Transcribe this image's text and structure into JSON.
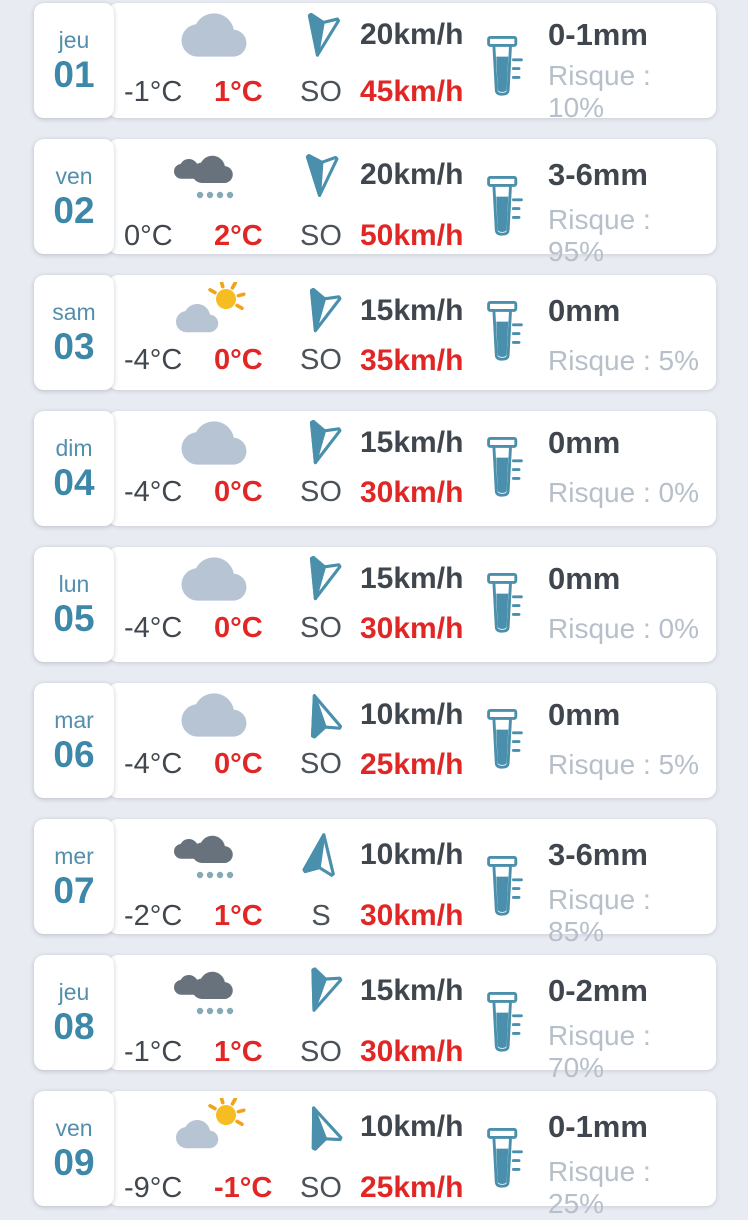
{
  "app": {
    "type": "weather-daily-forecast-list"
  },
  "colors": {
    "page_bg": "#e8ebf1",
    "card_bg": "#ffffff",
    "teal": "#4a90ad",
    "day_abbr": "#538fac",
    "day_num": "#3d87a9",
    "text_dark": "#3f464e",
    "text_red": "#e12626",
    "text_muted": "#b7c0ca",
    "cloud_light": "#b6c4d4",
    "cloud_dark": "#67727d",
    "rain_dot": "#86a9b6",
    "sun": "#f5bd22",
    "sun_ray": "#f0a31c"
  },
  "forecast": {
    "rows": [
      {
        "day_abbr": "jeu",
        "day_num": "01",
        "weather_icon": "cloud",
        "temp_min": "-1°C",
        "temp_max": "1°C",
        "wind_dir": "SO",
        "wind_speed": "20km/h",
        "wind_gust": "45km/h",
        "arrow_rotation": 190,
        "arrow_solid_wing": "right",
        "precip": "0-1mm",
        "risk": "Risque : 10%"
      },
      {
        "day_abbr": "ven",
        "day_num": "02",
        "weather_icon": "rain",
        "temp_min": "0°C",
        "temp_max": "2°C",
        "wind_dir": "SO",
        "wind_speed": "20km/h",
        "wind_gust": "50km/h",
        "arrow_rotation": 184,
        "arrow_solid_wing": "right",
        "precip": "3-6mm",
        "risk": "Risque : 95%"
      },
      {
        "day_abbr": "sam",
        "day_num": "03",
        "weather_icon": "partly-sunny",
        "temp_min": "-4°C",
        "temp_max": "0°C",
        "wind_dir": "SO",
        "wind_speed": "15km/h",
        "wind_gust": "35km/h",
        "arrow_rotation": 196,
        "arrow_solid_wing": "right",
        "precip": "0mm",
        "risk": "Risque : 5%"
      },
      {
        "day_abbr": "dim",
        "day_num": "04",
        "weather_icon": "cloud",
        "temp_min": "-4°C",
        "temp_max": "0°C",
        "wind_dir": "SO",
        "wind_speed": "15km/h",
        "wind_gust": "30km/h",
        "arrow_rotation": 196,
        "arrow_solid_wing": "right",
        "precip": "0mm",
        "risk": "Risque : 0%"
      },
      {
        "day_abbr": "lun",
        "day_num": "05",
        "weather_icon": "cloud",
        "temp_min": "-4°C",
        "temp_max": "0°C",
        "wind_dir": "SO",
        "wind_speed": "15km/h",
        "wind_gust": "30km/h",
        "arrow_rotation": 196,
        "arrow_solid_wing": "right",
        "precip": "0mm",
        "risk": "Risque : 0%"
      },
      {
        "day_abbr": "mar",
        "day_num": "06",
        "weather_icon": "cloud",
        "temp_min": "-4°C",
        "temp_max": "0°C",
        "wind_dir": "SO",
        "wind_speed": "10km/h",
        "wind_gust": "25km/h",
        "arrow_rotation": -19,
        "arrow_solid_wing": "left",
        "precip": "0mm",
        "risk": "Risque : 5%"
      },
      {
        "day_abbr": "mer",
        "day_num": "07",
        "weather_icon": "rain",
        "temp_min": "-2°C",
        "temp_max": "1°C",
        "wind_dir": "S",
        "wind_speed": "10km/h",
        "wind_gust": "30km/h",
        "arrow_rotation": 8,
        "arrow_solid_wing": "left",
        "precip": "3-6mm",
        "risk": "Risque : 85%"
      },
      {
        "day_abbr": "jeu",
        "day_num": "08",
        "weather_icon": "rain",
        "temp_min": "-1°C",
        "temp_max": "1°C",
        "wind_dir": "SO",
        "wind_speed": "15km/h",
        "wind_gust": "30km/h",
        "arrow_rotation": 200,
        "arrow_solid_wing": "right",
        "precip": "0-2mm",
        "risk": "Risque : 70%"
      },
      {
        "day_abbr": "ven",
        "day_num": "09",
        "weather_icon": "partly-sunny",
        "temp_min": "-9°C",
        "temp_max": "-1°C",
        "wind_dir": "SO",
        "wind_speed": "10km/h",
        "wind_gust": "25km/h",
        "arrow_rotation": -21,
        "arrow_solid_wing": "left",
        "precip": "0-1mm",
        "risk": "Risque : 25%"
      }
    ]
  }
}
